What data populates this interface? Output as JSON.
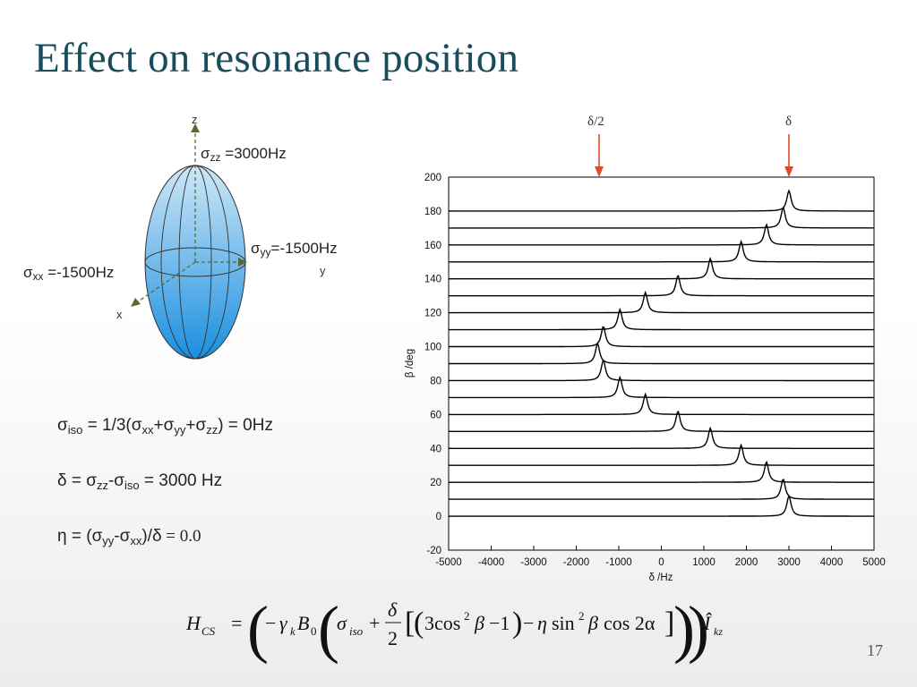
{
  "slide": {
    "title": "Effect on resonance position",
    "page_number": "17"
  },
  "ellipsoid": {
    "axis_z": "z",
    "axis_y": "y",
    "axis_x": "x",
    "sigma_zz": {
      "sym": "σ",
      "sub": "zz",
      "val": " =3000Hz"
    },
    "sigma_yy": {
      "sym": "σ",
      "sub": "yy",
      "val": "=-1500Hz"
    },
    "sigma_xx": {
      "sym": "σ",
      "sub": "xx",
      "val": " =-1500Hz"
    },
    "fill_top": "#cfe7f7",
    "fill_bottom": "#1a8fe0"
  },
  "equations": {
    "iso": {
      "sym": "σ",
      "sub": "iso",
      "t1": " = 1/3(",
      "s1": "σ",
      "b1": "xx",
      "plus1": "+",
      "s2": "σ",
      "b2": "yy",
      "plus2": "+",
      "s3": "σ",
      "b3": "zz",
      "t2": ") ",
      "t3": " = 0Hz"
    },
    "delta": {
      "sym": "δ",
      "t1": " = ",
      "s1": "σ",
      "b1": "zz",
      "minus": "-",
      "s2": "σ",
      "b2": "iso",
      "t2": " = 3000 Hz"
    },
    "eta": {
      "sym": "η",
      "t1": " = (",
      "s1": "σ",
      "b1": "yy",
      "minus": "-",
      "s2": "σ",
      "b2": "xx",
      "t2": ")/δ",
      "t3": " = 0.0"
    }
  },
  "arrows": {
    "half": "δ/2",
    "full": "δ",
    "color": "#e04a2a"
  },
  "formula": {
    "H": "H",
    "CS": "CS",
    "eq": "=",
    "minus": "−",
    "gamma": "γ",
    "k": "k",
    "B": "B",
    "zero": "0",
    "sigma": "σ",
    "iso": "iso",
    "plus": "+",
    "delta": "δ",
    "two": "2",
    "three_cos": "3cos",
    "sq": "2",
    "beta": "β",
    "minus_one": "−1",
    "minus2": "−",
    "eta": "η",
    "sin": "sin",
    "sq2": "2",
    "beta2": "β",
    "cos2a": "cos 2α",
    "I": "Î",
    "kz": "kz"
  },
  "chart_data": {
    "type": "line",
    "title": "",
    "xlabel": "δ /Hz",
    "ylabel": "β /deg",
    "xlim": [
      -5000,
      5000
    ],
    "ylim": [
      -20,
      200
    ],
    "xticks": [
      -5000,
      -4000,
      -3000,
      -2000,
      -1000,
      0,
      1000,
      2000,
      3000,
      4000,
      5000
    ],
    "yticks": [
      -20,
      0,
      20,
      40,
      60,
      80,
      100,
      120,
      140,
      160,
      180,
      200
    ],
    "line_color": "#000000",
    "trace_offset_deg": 10,
    "peak_height_deg": 12,
    "series": [
      {
        "beta": 0,
        "peak_hz": 3000
      },
      {
        "beta": 10,
        "peak_hz": 2864
      },
      {
        "beta": 20,
        "peak_hz": 2471
      },
      {
        "beta": 30,
        "peak_hz": 1875
      },
      {
        "beta": 40,
        "peak_hz": 1152
      },
      {
        "beta": 50,
        "peak_hz": 391
      },
      {
        "beta": 60,
        "peak_hz": -375
      },
      {
        "beta": 70,
        "peak_hz": -973
      },
      {
        "beta": 80,
        "peak_hz": -1364
      },
      {
        "beta": 90,
        "peak_hz": -1500
      },
      {
        "beta": 100,
        "peak_hz": -1364
      },
      {
        "beta": 110,
        "peak_hz": -973
      },
      {
        "beta": 120,
        "peak_hz": -375
      },
      {
        "beta": 130,
        "peak_hz": 391
      },
      {
        "beta": 140,
        "peak_hz": 1152
      },
      {
        "beta": 150,
        "peak_hz": 1875
      },
      {
        "beta": 160,
        "peak_hz": 2471
      },
      {
        "beta": 170,
        "peak_hz": 2864
      },
      {
        "beta": 180,
        "peak_hz": 3000
      }
    ]
  }
}
